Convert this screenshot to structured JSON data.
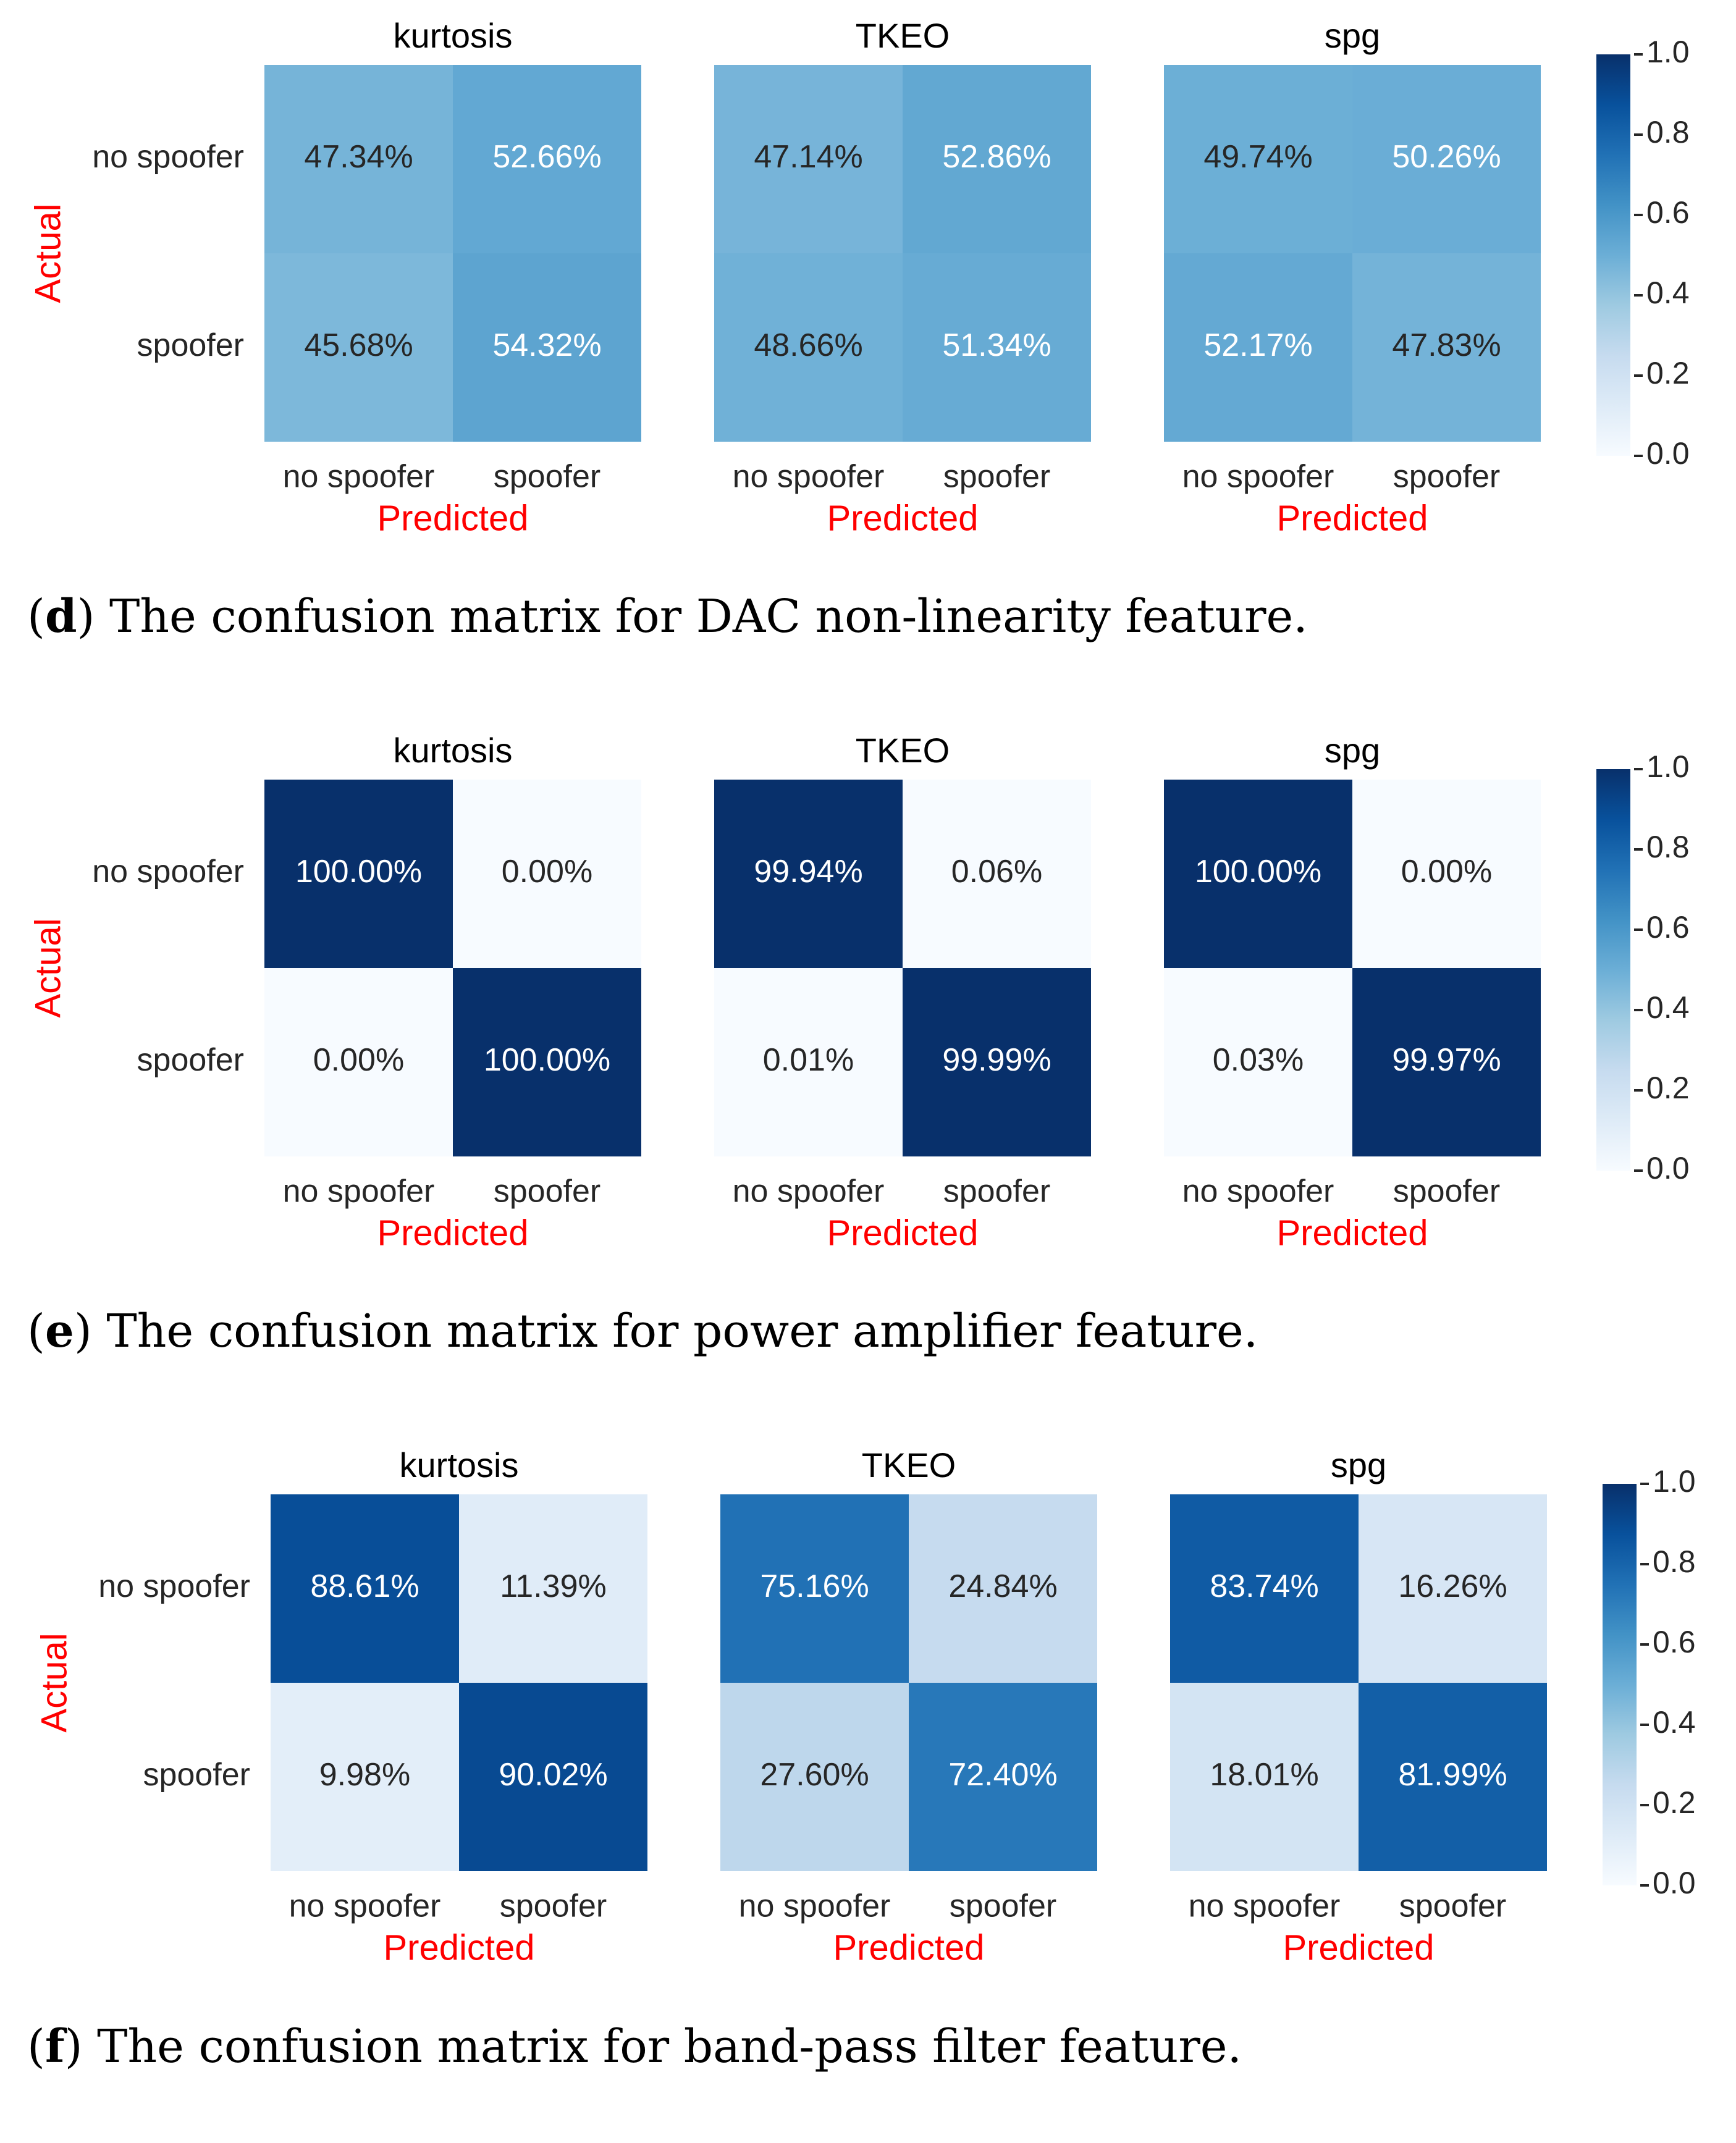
{
  "figures": [
    {
      "letter": "d",
      "caption_text": "The confusion matrix for DAC non-linearity feature.",
      "chart_data": {
        "type": "heatmap",
        "row_labels": [
          "no spoofer",
          "spoofer"
        ],
        "col_labels": [
          "no spoofer",
          "spoofer"
        ],
        "xlabel": "Predicted",
        "ylabel": "Actual",
        "colorbar": {
          "min": 0.0,
          "max": 1.0,
          "ticks": [
            "0.0",
            "0.2",
            "0.4",
            "0.6",
            "0.8",
            "1.0"
          ]
        },
        "matrices": [
          {
            "title": "kurtosis",
            "values": [
              [
                0.4734,
                0.5266
              ],
              [
                0.4568,
                0.5432
              ]
            ],
            "labels": [
              [
                "47.34%",
                "52.66%"
              ],
              [
                "45.68%",
                "54.32%"
              ]
            ]
          },
          {
            "title": "TKEO",
            "values": [
              [
                0.4714,
                0.5286
              ],
              [
                0.4866,
                0.5134
              ]
            ],
            "labels": [
              [
                "47.14%",
                "52.86%"
              ],
              [
                "48.66%",
                "51.34%"
              ]
            ]
          },
          {
            "title": "spg",
            "values": [
              [
                0.4974,
                0.5026
              ],
              [
                0.5217,
                0.4783
              ]
            ],
            "labels": [
              [
                "49.74%",
                "50.26%"
              ],
              [
                "52.17%",
                "47.83%"
              ]
            ]
          }
        ]
      }
    },
    {
      "letter": "e",
      "caption_text": "The confusion matrix for power amplifier feature.",
      "chart_data": {
        "type": "heatmap",
        "row_labels": [
          "no spoofer",
          "spoofer"
        ],
        "col_labels": [
          "no spoofer",
          "spoofer"
        ],
        "xlabel": "Predicted",
        "ylabel": "Actual",
        "colorbar": {
          "min": 0.0,
          "max": 1.0,
          "ticks": [
            "0.0",
            "0.2",
            "0.4",
            "0.6",
            "0.8",
            "1.0"
          ]
        },
        "matrices": [
          {
            "title": "kurtosis",
            "values": [
              [
                1.0,
                0.0
              ],
              [
                0.0,
                1.0
              ]
            ],
            "labels": [
              [
                "100.00%",
                "0.00%"
              ],
              [
                "0.00%",
                "100.00%"
              ]
            ]
          },
          {
            "title": "TKEO",
            "values": [
              [
                0.9994,
                0.0006
              ],
              [
                0.0001,
                0.9999
              ]
            ],
            "labels": [
              [
                "99.94%",
                "0.06%"
              ],
              [
                "0.01%",
                "99.99%"
              ]
            ]
          },
          {
            "title": "spg",
            "values": [
              [
                1.0,
                0.0
              ],
              [
                0.0003,
                0.9997
              ]
            ],
            "labels": [
              [
                "100.00%",
                "0.00%"
              ],
              [
                "0.03%",
                "99.97%"
              ]
            ]
          }
        ]
      }
    },
    {
      "letter": "f",
      "caption_text": "The confusion matrix for band-pass filter feature.",
      "chart_data": {
        "type": "heatmap",
        "row_labels": [
          "no spoofer",
          "spoofer"
        ],
        "col_labels": [
          "no spoofer",
          "spoofer"
        ],
        "xlabel": "Predicted",
        "ylabel": "Actual",
        "colorbar": {
          "min": 0.0,
          "max": 1.0,
          "ticks": [
            "0.0",
            "0.2",
            "0.4",
            "0.6",
            "0.8",
            "1.0"
          ]
        },
        "matrices": [
          {
            "title": "kurtosis",
            "values": [
              [
                0.8861,
                0.1139
              ],
              [
                0.0998,
                0.9002
              ]
            ],
            "labels": [
              [
                "88.61%",
                "11.39%"
              ],
              [
                "9.98%",
                "90.02%"
              ]
            ]
          },
          {
            "title": "TKEO",
            "values": [
              [
                0.7516,
                0.2484
              ],
              [
                0.276,
                0.724
              ]
            ],
            "labels": [
              [
                "75.16%",
                "24.84%"
              ],
              [
                "27.60%",
                "72.40%"
              ]
            ]
          },
          {
            "title": "spg",
            "values": [
              [
                0.8374,
                0.1626
              ],
              [
                0.1801,
                0.8199
              ]
            ],
            "labels": [
              [
                "83.74%",
                "16.26%"
              ],
              [
                "18.01%",
                "81.99%"
              ]
            ]
          }
        ]
      }
    }
  ]
}
